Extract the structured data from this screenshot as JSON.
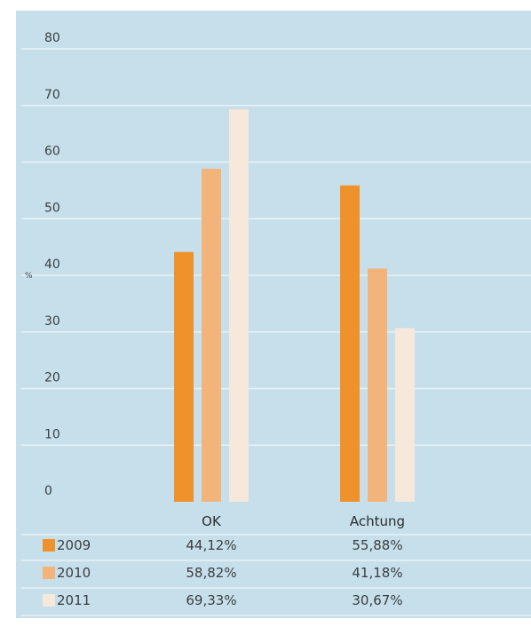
{
  "chart_data": {
    "type": "bar",
    "title": "",
    "xlabel": "",
    "ylabel": "%",
    "ylim": [
      0,
      80
    ],
    "yticks": [
      0,
      10,
      20,
      30,
      40,
      50,
      60,
      70,
      80
    ],
    "categories": [
      "OK",
      "Achtung"
    ],
    "series": [
      {
        "name": "2009",
        "values": [
          44.12,
          55.88
        ],
        "color": "#f0922c",
        "table_labels": [
          "44,12%",
          "55,88%"
        ]
      },
      {
        "name": "2010",
        "values": [
          58.82,
          41.18
        ],
        "color": "#f2b47a",
        "table_labels": [
          "58,82%",
          "41,18%"
        ]
      },
      {
        "name": "2011",
        "values": [
          69.33,
          30.67
        ],
        "color": "#f6e8da",
        "table_labels": [
          "69,33%",
          "30,67%"
        ]
      }
    ],
    "grid": true,
    "legend": "bottom-left table"
  },
  "colors": {
    "background": "#c6dfea",
    "gridline": "#e9f3f8",
    "text": "#3a3f44"
  }
}
